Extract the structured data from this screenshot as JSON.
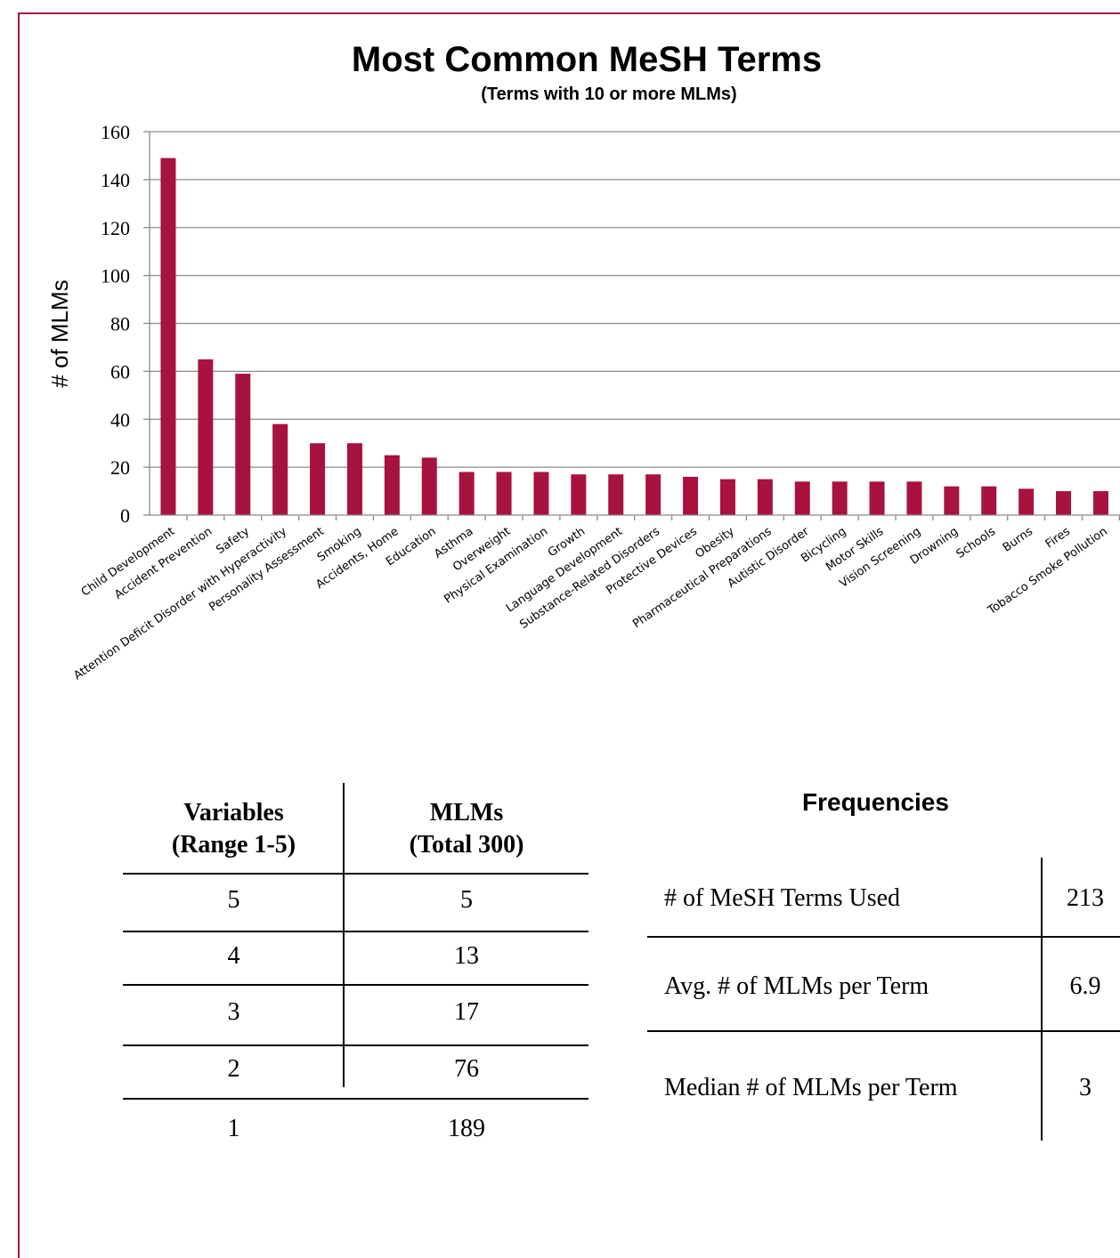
{
  "chart_data": {
    "type": "bar",
    "title": "Most Common MeSH Terms",
    "subtitle": "(Terms with 10 or more MLMs)",
    "ylabel": "# of MLMs",
    "xlabel": "",
    "ylim": [
      0,
      160
    ],
    "yticks": [
      0,
      20,
      40,
      60,
      80,
      100,
      120,
      140,
      160
    ],
    "grid": true,
    "bar_color": "#a8123e",
    "categories": [
      "Child Development",
      "Accident Prevention",
      "Safety",
      "Attention Deficit Disorder with Hyperactivity",
      "Personality Assessment",
      "Smoking",
      "Accidents, Home",
      "Education",
      "Asthma",
      "Overweight",
      "Physical Examination",
      "Growth",
      "Language Development",
      "Substance-Related Disorders",
      "Protective Devices",
      "Obesity",
      "Pharmaceutical Preparations",
      "Autistic Disorder",
      "Bicycling",
      "Motor Skills",
      "Vision Screening",
      "Drowning",
      "Schools",
      "Burns",
      "Fires",
      "Tobacco Smoke Pollution"
    ],
    "values": [
      149,
      65,
      59,
      38,
      30,
      30,
      25,
      24,
      18,
      18,
      18,
      17,
      17,
      17,
      16,
      15,
      15,
      14,
      14,
      14,
      14,
      12,
      12,
      11,
      10,
      10
    ]
  },
  "variables_table": {
    "headers": [
      [
        "Variables",
        "(Range 1-5)"
      ],
      [
        "MLMs",
        "(Total 300)"
      ]
    ],
    "rows": [
      [
        "5",
        "5"
      ],
      [
        "4",
        "13"
      ],
      [
        "3",
        "17"
      ],
      [
        "2",
        "76"
      ],
      [
        "1",
        "189"
      ]
    ]
  },
  "frequencies": {
    "title": "Frequencies",
    "rows": [
      {
        "label": "# of MeSH Terms Used",
        "value": "213"
      },
      {
        "label": "Avg. # of MLMs per  Term",
        "value": "6.9"
      },
      {
        "label": "Median # of MLMs per Term",
        "value": "3"
      }
    ]
  },
  "colors": {
    "accent": "#a8123e",
    "border": "#a8123e"
  }
}
